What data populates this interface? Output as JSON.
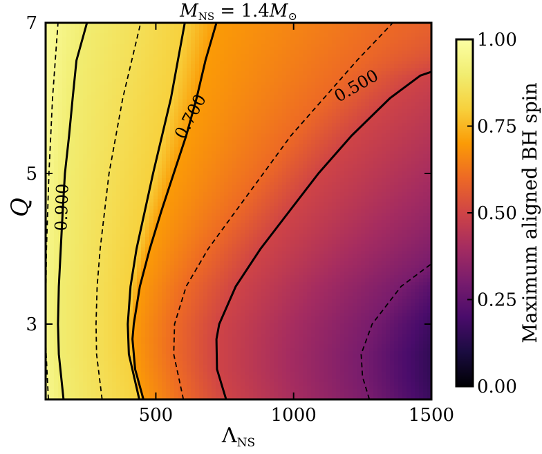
{
  "chart_data": {
    "type": "heatmap",
    "title": "M_NS = 1.4 M_⊙",
    "title_parts": {
      "m": "M",
      "sub": "NS",
      "rest": " = 1.4",
      "m2": "M",
      "sun": "⊙"
    },
    "xlabel": "Λ_NS",
    "xlabel_parts": {
      "main": "Λ",
      "sub": "NS"
    },
    "ylabel": "Q",
    "xlim": [
      100,
      1500
    ],
    "ylim": [
      2,
      7
    ],
    "xticks": [
      500,
      1000,
      1500
    ],
    "xtick_labels": [
      "500",
      "1000",
      "1500"
    ],
    "yticks": [
      3,
      5,
      7
    ],
    "ytick_labels": [
      "3",
      "5",
      "7"
    ],
    "colorbar": {
      "label": "Maximum aligned BH spin",
      "range": [
        0,
        1
      ],
      "ticks": [
        0,
        0.25,
        0.5,
        0.75,
        1.0
      ],
      "tick_labels": [
        "0.00",
        "0.25",
        "0.50",
        "0.75",
        "1.00"
      ],
      "colormap": "inferno"
    },
    "contours": [
      {
        "level": 0.9,
        "style": "solid",
        "label": "0.900",
        "x_at_q": [
          [
            2.0,
            165
          ],
          [
            2.6,
            148
          ],
          [
            3.0,
            145
          ],
          [
            3.5,
            148
          ],
          [
            4.0,
            155
          ],
          [
            4.5,
            162
          ],
          [
            5.0,
            170
          ],
          [
            5.5,
            185
          ],
          [
            6.0,
            198
          ],
          [
            6.5,
            212
          ],
          [
            7.0,
            250
          ]
        ]
      },
      {
        "level": 0.95,
        "style": "dashed",
        "x_at_q": [
          [
            2.0,
            110
          ],
          [
            2.6,
            102
          ],
          [
            3.0,
            100
          ],
          [
            4.0,
            103
          ],
          [
            5.0,
            112
          ],
          [
            6.0,
            125
          ],
          [
            7.0,
            145
          ]
        ]
      },
      {
        "level": 0.85,
        "style": "dashed",
        "x_at_q": [
          [
            2.0,
            305
          ],
          [
            2.6,
            285
          ],
          [
            3.0,
            283
          ],
          [
            3.5,
            287
          ],
          [
            4.0,
            298
          ],
          [
            5.0,
            330
          ],
          [
            6.0,
            380
          ],
          [
            7.0,
            445
          ]
        ]
      },
      {
        "level": 0.8,
        "style": "solid",
        "x_at_q": [
          [
            2.0,
            440
          ],
          [
            2.6,
            402
          ],
          [
            3.0,
            398
          ],
          [
            3.5,
            408
          ],
          [
            4.0,
            430
          ],
          [
            5.0,
            490
          ],
          [
            6.0,
            555
          ],
          [
            7.0,
            605
          ]
        ]
      },
      {
        "level": 0.7,
        "style": "solid",
        "label": "0.700",
        "x_at_q": [
          [
            2.0,
            455
          ],
          [
            2.4,
            425
          ],
          [
            2.8,
            415
          ],
          [
            3.0,
            420
          ],
          [
            3.5,
            442
          ],
          [
            4.0,
            478
          ],
          [
            4.5,
            520
          ],
          [
            5.0,
            565
          ],
          [
            5.5,
            610
          ],
          [
            6.0,
            648
          ],
          [
            6.5,
            680
          ],
          [
            7.0,
            720
          ]
        ]
      },
      {
        "level": 0.6,
        "style": "dashed",
        "x_at_q": [
          [
            2.0,
            600
          ],
          [
            2.6,
            565
          ],
          [
            3.0,
            568
          ],
          [
            3.5,
            610
          ],
          [
            4.0,
            690
          ],
          [
            4.5,
            790
          ],
          [
            5.0,
            890
          ],
          [
            5.5,
            990
          ],
          [
            6.0,
            1110
          ],
          [
            6.5,
            1230
          ],
          [
            7.0,
            1360
          ]
        ]
      },
      {
        "level": 0.5,
        "style": "solid",
        "label": "0.500",
        "x_at_q": [
          [
            2.0,
            755
          ],
          [
            2.4,
            722
          ],
          [
            2.8,
            720
          ],
          [
            3.0,
            730
          ],
          [
            3.5,
            790
          ],
          [
            4.0,
            880
          ],
          [
            4.5,
            985
          ],
          [
            5.0,
            1090
          ],
          [
            5.5,
            1210
          ],
          [
            6.0,
            1350
          ],
          [
            6.3,
            1460
          ],
          [
            6.35,
            1500
          ]
        ]
      },
      {
        "level": 0.3,
        "style": "dashed",
        "x_at_q": [
          [
            2.0,
            1275
          ],
          [
            2.3,
            1250
          ],
          [
            2.6,
            1245
          ],
          [
            3.0,
            1285
          ],
          [
            3.5,
            1390
          ],
          [
            3.8,
            1500
          ]
        ]
      }
    ]
  }
}
